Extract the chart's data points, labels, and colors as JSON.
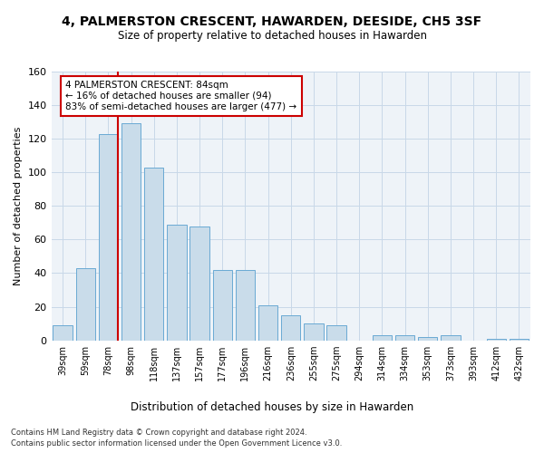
{
  "title": "4, PALMERSTON CRESCENT, HAWARDEN, DEESIDE, CH5 3SF",
  "subtitle": "Size of property relative to detached houses in Hawarden",
  "xlabel_bottom": "Distribution of detached houses by size in Hawarden",
  "ylabel": "Number of detached properties",
  "bar_labels": [
    "39sqm",
    "59sqm",
    "78sqm",
    "98sqm",
    "118sqm",
    "137sqm",
    "157sqm",
    "177sqm",
    "196sqm",
    "216sqm",
    "236sqm",
    "255sqm",
    "275sqm",
    "294sqm",
    "314sqm",
    "334sqm",
    "353sqm",
    "373sqm",
    "393sqm",
    "412sqm",
    "432sqm"
  ],
  "bar_values": [
    9,
    43,
    123,
    129,
    103,
    69,
    68,
    42,
    42,
    21,
    15,
    10,
    9,
    0,
    3,
    3,
    2,
    3,
    0,
    1,
    1
  ],
  "bar_color": "#c9dcea",
  "bar_edge_color": "#6aaad4",
  "grid_color": "#c8d8e8",
  "background_color": "#eef3f8",
  "vline_color": "#cc0000",
  "annotation_text": "4 PALMERSTON CRESCENT: 84sqm\n← 16% of detached houses are smaller (94)\n83% of semi-detached houses are larger (477) →",
  "annotation_box_color": "#ffffff",
  "annotation_box_edge_color": "#cc0000",
  "ylim": [
    0,
    160
  ],
  "yticks": [
    0,
    20,
    40,
    60,
    80,
    100,
    120,
    140,
    160
  ],
  "footer1": "Contains HM Land Registry data © Crown copyright and database right 2024.",
  "footer2": "Contains public sector information licensed under the Open Government Licence v3.0."
}
